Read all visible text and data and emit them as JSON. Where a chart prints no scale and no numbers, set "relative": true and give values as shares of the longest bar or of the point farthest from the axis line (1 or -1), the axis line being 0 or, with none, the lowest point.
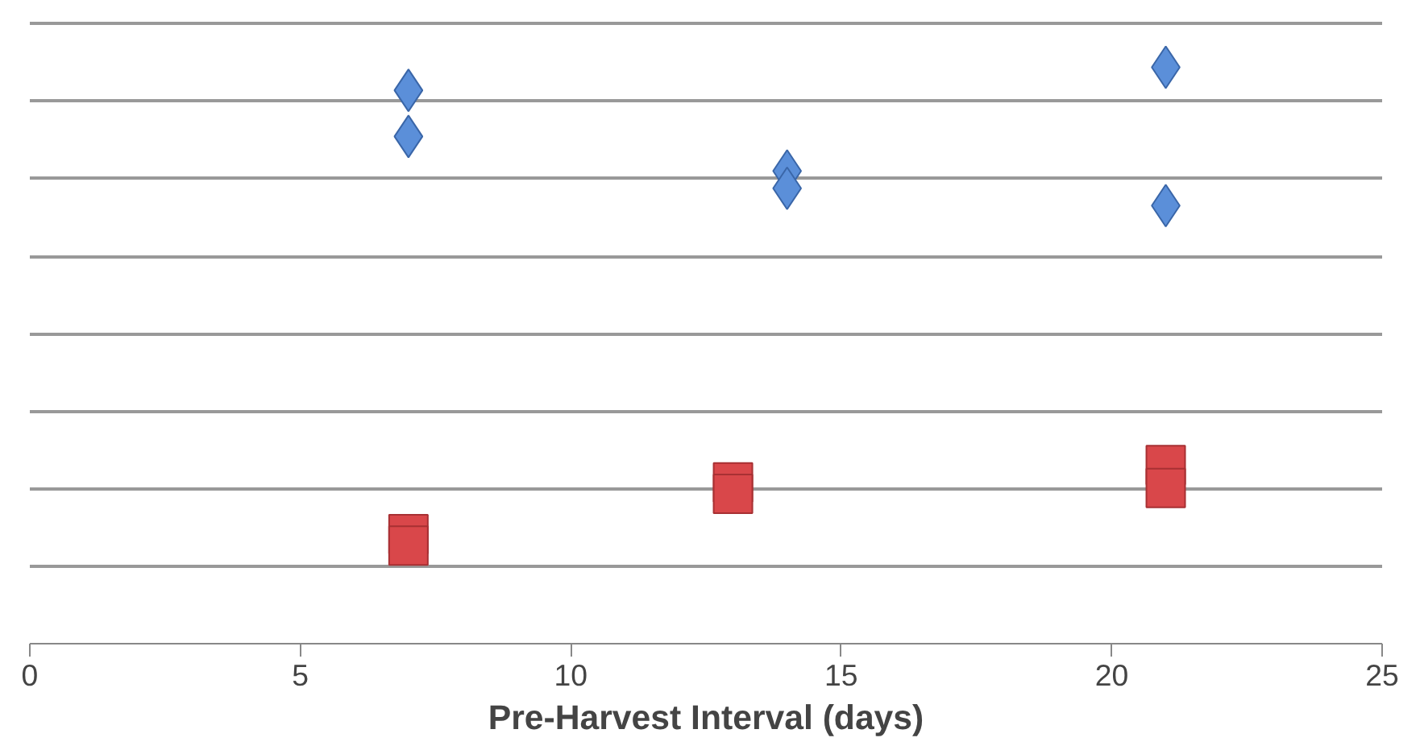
{
  "chart_data": {
    "type": "scatter",
    "xlabel": "Pre-Harvest Interval (days)",
    "xlim": [
      0,
      25
    ],
    "xticks": [
      0,
      5,
      10,
      15,
      20,
      25
    ],
    "relative": true,
    "grid": "y",
    "tick_labels": "x",
    "series": [
      {
        "color": "#5b8fd9",
        "marker": "diamond",
        "x": [
          7,
          7,
          14,
          14,
          21,
          21
        ],
        "values": [
          0.96,
          0.88,
          0.82,
          0.79,
          1,
          0.76
        ]
      },
      {
        "color": "#d9474a",
        "marker": "square",
        "x": [
          7,
          7,
          13,
          13,
          21,
          21
        ],
        "values": [
          0.19,
          0.17,
          0.28,
          0.26,
          0.31,
          0.27
        ]
      }
    ]
  }
}
